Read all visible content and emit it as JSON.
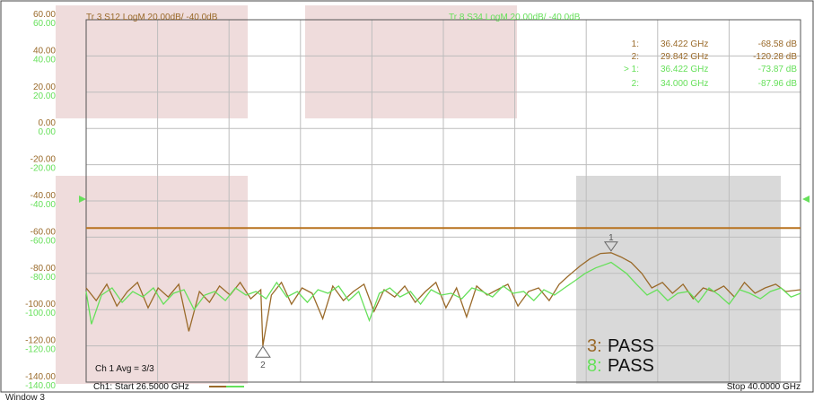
{
  "window_label": "Window 3",
  "colors": {
    "trace3": "#9a6a2a",
    "trace8": "#66e05a",
    "limit": "#b8721f",
    "grid": "#bdbdbd",
    "axis_text_brown": "#9a6a2a",
    "axis_text_green": "#66e05a",
    "mask_pink": "#efdcdc",
    "mask_gray": "#d9d9d9",
    "frame": "#444444"
  },
  "chart_data": {
    "type": "line",
    "title": "",
    "xlabel": "",
    "ylabel": "",
    "x_start_ghz": 26.5,
    "x_stop_ghz": 40.0,
    "ylim": [
      -140,
      60
    ],
    "grid": true,
    "y_ticks": [
      "60.00",
      "40.00",
      "20.00",
      "0.00",
      "-20.00",
      "-40.00",
      "-60.00",
      "-80.00",
      "-100.00",
      "-120.00",
      "-140.00"
    ],
    "y_ticks_values": [
      60,
      40,
      20,
      0,
      -20,
      -40,
      -60,
      -80,
      -100,
      -120,
      -140
    ],
    "trace_headers": [
      {
        "id": "tr3",
        "text": "Tr 3  S12 LogM 20.00dB/  -40.0dB"
      },
      {
        "id": "tr8",
        "text": "Tr 8  S34 LogM 20.00dB/  -40.0dB"
      }
    ],
    "markers_table": [
      {
        "num": "1:",
        "freq": "36.422 GHz",
        "val": "-68.58 dB",
        "trace": "tr3"
      },
      {
        "num": "2:",
        "freq": "29.842 GHz",
        "val": "-120.28 dB",
        "trace": "tr3"
      },
      {
        "num": "> 1:",
        "freq": "36.422 GHz",
        "val": "-73.87 dB",
        "trace": "tr8"
      },
      {
        "num": "2:",
        "freq": "34.000 GHz",
        "val": "-87.96 dB",
        "trace": "tr8"
      }
    ],
    "limit_line_db": -55,
    "pass_status": [
      {
        "num": "3:",
        "text": "PASS",
        "trace": "tr3"
      },
      {
        "num": "8:",
        "text": "PASS",
        "trace": "tr8"
      }
    ],
    "footer": {
      "start": "Ch1:  Start  26.5000 GHz",
      "stop": "Stop  40.0000 GHz",
      "avg": "Ch 1 Avg =   3/3"
    },
    "marker_labels": [
      {
        "label": "1",
        "x_ghz": 36.42,
        "db": -68.6,
        "trace": "tr3"
      },
      {
        "label": "2",
        "x_ghz": 29.84,
        "db": -120.3,
        "trace": "tr3"
      }
    ],
    "series": [
      {
        "id": "tr3",
        "x_ghz": [
          26.5,
          26.69,
          26.89,
          27.08,
          27.28,
          27.47,
          27.67,
          27.86,
          28.05,
          28.25,
          28.44,
          28.64,
          28.83,
          29.02,
          29.22,
          29.41,
          29.61,
          29.8,
          29.84,
          30.0,
          30.19,
          30.38,
          30.58,
          30.77,
          30.97,
          31.16,
          31.36,
          31.55,
          31.75,
          31.94,
          32.13,
          32.33,
          32.52,
          32.72,
          32.91,
          33.11,
          33.3,
          33.5,
          33.69,
          33.88,
          34.08,
          34.27,
          34.47,
          34.66,
          34.86,
          35.05,
          35.25,
          35.44,
          35.63,
          35.83,
          36.02,
          36.22,
          36.42,
          36.61,
          36.8,
          37.0,
          37.19,
          37.39,
          37.58,
          37.78,
          37.97,
          38.16,
          38.36,
          38.55,
          38.75,
          38.94,
          39.14,
          39.33,
          39.53,
          39.72,
          40.0
        ],
        "db": [
          -88,
          -95,
          -86,
          -98,
          -90,
          -85,
          -99,
          -88,
          -93,
          -86,
          -112,
          -90,
          -96,
          -87,
          -92,
          -85,
          -94,
          -89,
          -120,
          -92,
          -85,
          -97,
          -88,
          -91,
          -105,
          -87,
          -95,
          -90,
          -86,
          -101,
          -89,
          -93,
          -87,
          -96,
          -90,
          -85,
          -99,
          -88,
          -104,
          -87,
          -92,
          -89,
          -86,
          -98,
          -90,
          -88,
          -95,
          -86,
          -81,
          -76,
          -72,
          -69,
          -68.6,
          -71,
          -74,
          -80,
          -88,
          -85,
          -91,
          -86,
          -94,
          -88,
          -90,
          -87,
          -93,
          -85,
          -91,
          -88,
          -86,
          -90,
          -89
        ]
      },
      {
        "id": "tr8",
        "x_ghz": [
          26.5,
          26.6,
          26.79,
          26.99,
          27.18,
          27.38,
          27.57,
          27.77,
          27.96,
          28.15,
          28.35,
          28.54,
          28.74,
          28.93,
          29.13,
          29.32,
          29.52,
          29.71,
          29.9,
          30.1,
          30.29,
          30.49,
          30.68,
          30.88,
          31.07,
          31.27,
          31.46,
          31.65,
          31.85,
          32.04,
          32.24,
          32.43,
          32.63,
          32.82,
          33.02,
          33.21,
          33.4,
          33.6,
          33.79,
          33.99,
          34.18,
          34.38,
          34.57,
          34.77,
          34.96,
          35.15,
          35.35,
          35.54,
          35.74,
          35.93,
          36.13,
          36.32,
          36.42,
          36.52,
          36.71,
          36.9,
          37.1,
          37.29,
          37.49,
          37.68,
          37.88,
          38.07,
          38.27,
          38.46,
          38.65,
          38.85,
          39.04,
          39.24,
          39.43,
          39.63,
          39.82,
          40.0
        ],
        "db": [
          -90,
          -108,
          -92,
          -88,
          -96,
          -90,
          -93,
          -88,
          -97,
          -91,
          -89,
          -100,
          -92,
          -90,
          -95,
          -88,
          -92,
          -90,
          -94,
          -85,
          -93,
          -90,
          -96,
          -89,
          -91,
          -87,
          -95,
          -90,
          -106,
          -91,
          -88,
          -93,
          -90,
          -97,
          -89,
          -92,
          -91,
          -94,
          -88,
          -90,
          -93,
          -87,
          -91,
          -90,
          -95,
          -89,
          -92,
          -88,
          -84,
          -80,
          -77,
          -75,
          -73.9,
          -76,
          -80,
          -86,
          -92,
          -89,
          -95,
          -91,
          -90,
          -96,
          -88,
          -92,
          -97,
          -89,
          -91,
          -94,
          -90,
          -88,
          -93,
          -91
        ]
      }
    ]
  }
}
